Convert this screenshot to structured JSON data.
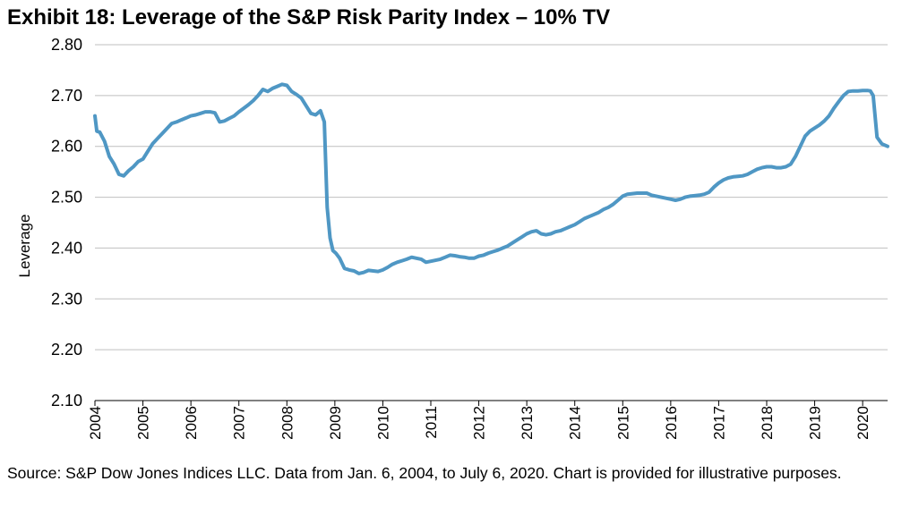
{
  "title": "Exhibit 18: Leverage of the S&P Risk Parity Index – 10% TV",
  "source": "Source: S&P Dow Jones Indices LLC.  Data from Jan. 6, 2004, to July 6, 2020.  Chart is provided for illustrative purposes.",
  "colors": {
    "line": "#4f97c4",
    "grid": "#bfbfbf",
    "axis": "#000000"
  },
  "chart_data": {
    "type": "line",
    "title": "Exhibit 18: Leverage of the S&P Risk Parity Index – 10% TV",
    "xlabel": "",
    "ylabel": "Leverage",
    "ylim": [
      2.1,
      2.8
    ],
    "xlim": [
      2004,
      2020.52
    ],
    "yticks": [
      "2.10",
      "2.20",
      "2.30",
      "2.40",
      "2.50",
      "2.60",
      "2.70",
      "2.80"
    ],
    "xticks": [
      "2004",
      "2005",
      "2006",
      "2007",
      "2008",
      "2009",
      "2010",
      "2011",
      "2012",
      "2013",
      "2014",
      "2015",
      "2016",
      "2017",
      "2018",
      "2019",
      "2020"
    ],
    "grid": "horizontal",
    "series": [
      {
        "x": [
          2004.0,
          2004.04,
          2004.1,
          2004.2,
          2004.3,
          2004.4,
          2004.5,
          2004.6,
          2004.7,
          2004.8,
          2004.9,
          2005.0,
          2005.1,
          2005.2,
          2005.3,
          2005.4,
          2005.5,
          2005.6,
          2005.7,
          2005.8,
          2005.9,
          2006.0,
          2006.1,
          2006.2,
          2006.3,
          2006.4,
          2006.5,
          2006.6,
          2006.7,
          2006.8,
          2006.9,
          2007.0,
          2007.1,
          2007.2,
          2007.3,
          2007.4,
          2007.5,
          2007.6,
          2007.7,
          2007.8,
          2007.9,
          2008.0,
          2008.1,
          2008.2,
          2008.3,
          2008.4,
          2008.5,
          2008.6,
          2008.7,
          2008.78,
          2008.84,
          2008.9,
          2008.96,
          2009.02,
          2009.1,
          2009.2,
          2009.3,
          2009.4,
          2009.5,
          2009.6,
          2009.7,
          2009.8,
          2009.9,
          2010.0,
          2010.1,
          2010.2,
          2010.3,
          2010.4,
          2010.5,
          2010.6,
          2010.7,
          2010.8,
          2010.9,
          2011.0,
          2011.1,
          2011.2,
          2011.3,
          2011.4,
          2011.5,
          2011.6,
          2011.7,
          2011.8,
          2011.9,
          2012.0,
          2012.1,
          2012.2,
          2012.3,
          2012.4,
          2012.5,
          2012.6,
          2012.7,
          2012.8,
          2012.9,
          2013.0,
          2013.1,
          2013.2,
          2013.3,
          2013.4,
          2013.5,
          2013.6,
          2013.7,
          2013.8,
          2013.9,
          2014.0,
          2014.1,
          2014.2,
          2014.3,
          2014.4,
          2014.5,
          2014.6,
          2014.7,
          2014.8,
          2014.9,
          2015.0,
          2015.1,
          2015.2,
          2015.3,
          2015.4,
          2015.5,
          2015.6,
          2015.7,
          2015.8,
          2015.9,
          2016.0,
          2016.1,
          2016.2,
          2016.3,
          2016.4,
          2016.5,
          2016.6,
          2016.7,
          2016.8,
          2016.9,
          2017.0,
          2017.1,
          2017.2,
          2017.3,
          2017.4,
          2017.5,
          2017.6,
          2017.7,
          2017.8,
          2017.9,
          2018.0,
          2018.1,
          2018.2,
          2018.3,
          2018.4,
          2018.5,
          2018.6,
          2018.7,
          2018.8,
          2018.9,
          2019.0,
          2019.1,
          2019.2,
          2019.3,
          2019.4,
          2019.5,
          2019.6,
          2019.7,
          2019.8,
          2019.9,
          2020.0,
          2020.1,
          2020.16,
          2020.22,
          2020.3,
          2020.4,
          2020.52
        ],
        "values": [
          2.66,
          2.63,
          2.628,
          2.61,
          2.58,
          2.565,
          2.545,
          2.542,
          2.552,
          2.56,
          2.57,
          2.575,
          2.59,
          2.605,
          2.615,
          2.625,
          2.635,
          2.645,
          2.648,
          2.652,
          2.656,
          2.66,
          2.662,
          2.665,
          2.668,
          2.668,
          2.666,
          2.648,
          2.65,
          2.655,
          2.66,
          2.668,
          2.675,
          2.682,
          2.69,
          2.7,
          2.712,
          2.708,
          2.714,
          2.718,
          2.722,
          2.72,
          2.708,
          2.702,
          2.695,
          2.68,
          2.665,
          2.662,
          2.67,
          2.648,
          2.48,
          2.42,
          2.395,
          2.39,
          2.38,
          2.36,
          2.357,
          2.355,
          2.35,
          2.352,
          2.356,
          2.355,
          2.354,
          2.357,
          2.362,
          2.368,
          2.372,
          2.375,
          2.378,
          2.382,
          2.38,
          2.378,
          2.372,
          2.374,
          2.376,
          2.378,
          2.382,
          2.386,
          2.385,
          2.383,
          2.382,
          2.38,
          2.38,
          2.384,
          2.386,
          2.39,
          2.393,
          2.396,
          2.4,
          2.404,
          2.41,
          2.416,
          2.422,
          2.428,
          2.432,
          2.434,
          2.428,
          2.426,
          2.428,
          2.432,
          2.434,
          2.438,
          2.442,
          2.446,
          2.452,
          2.458,
          2.462,
          2.466,
          2.47,
          2.476,
          2.48,
          2.486,
          2.494,
          2.502,
          2.506,
          2.507,
          2.508,
          2.508,
          2.508,
          2.504,
          2.502,
          2.5,
          2.498,
          2.496,
          2.494,
          2.496,
          2.5,
          2.502,
          2.503,
          2.504,
          2.506,
          2.51,
          2.52,
          2.528,
          2.534,
          2.538,
          2.54,
          2.541,
          2.542,
          2.545,
          2.55,
          2.555,
          2.558,
          2.56,
          2.56,
          2.558,
          2.558,
          2.56,
          2.565,
          2.58,
          2.6,
          2.62,
          2.63,
          2.636,
          2.642,
          2.65,
          2.66,
          2.675,
          2.688,
          2.7,
          2.708,
          2.709,
          2.709,
          2.71,
          2.71,
          2.709,
          2.7,
          2.618,
          2.605,
          2.6
        ]
      }
    ]
  }
}
